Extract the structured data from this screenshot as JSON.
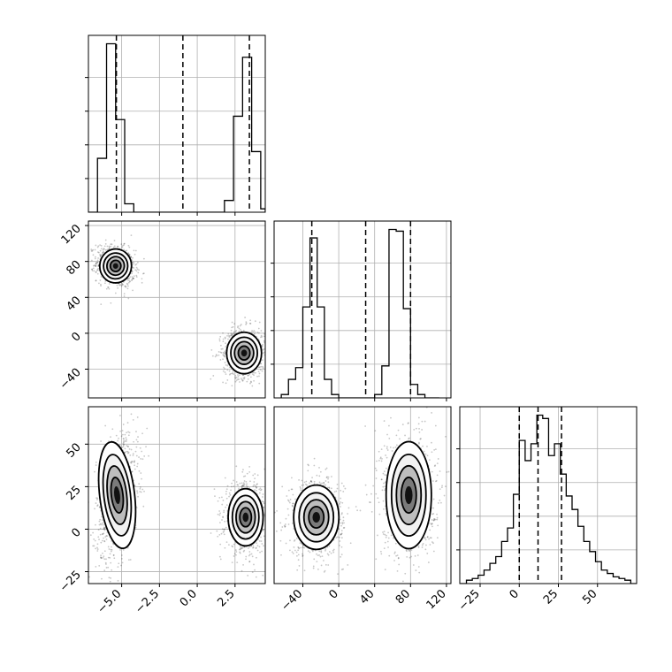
{
  "chart_data": {
    "type": "corner",
    "parameters": 3,
    "grid": true,
    "panels": [
      {
        "id": "hist-p1",
        "type": "histogram",
        "row": 0,
        "col": 0,
        "xlim": [
          -7.2,
          4.5
        ],
        "ylim": [
          0,
          1.05
        ],
        "xticks": [
          -5.0,
          -2.5,
          0.0,
          2.5
        ],
        "quantiles": [
          -5.35,
          -0.95,
          3.45
        ],
        "bins": {
          "edges": [
            -7.2,
            -6.6,
            -6.0,
            -5.4,
            -4.8,
            -4.2,
            -3.6,
            -3.0,
            1.8,
            2.4,
            3.0,
            3.6,
            4.2,
            4.5
          ],
          "heights": [
            0.0,
            0.32,
            1.0,
            0.55,
            0.05,
            0.0,
            0.0,
            0.0,
            0.07,
            0.57,
            0.92,
            0.36,
            0.02
          ]
        }
      },
      {
        "id": "scatter-p1-p2",
        "type": "density2d",
        "row": 1,
        "col": 0,
        "xlim": [
          -7.2,
          4.5
        ],
        "ylim": [
          -72,
          125
        ],
        "xticks": [
          -5.0,
          -2.5,
          0.0,
          2.5
        ],
        "yticks": [
          -40,
          0,
          40,
          80,
          120
        ],
        "ytick_labels": [
          "−40",
          "0",
          "40",
          "80",
          "120"
        ],
        "clusters": [
          {
            "cx": -5.4,
            "cy": 75,
            "sx": 0.5,
            "sy": 9,
            "rho": -0.2
          },
          {
            "cx": 3.1,
            "cy": -22,
            "sx": 0.55,
            "sy": 11,
            "rho": 0.0
          }
        ]
      },
      {
        "id": "hist-p2",
        "type": "histogram",
        "row": 1,
        "col": 1,
        "xlim": [
          -72,
          125
        ],
        "ylim": [
          0,
          1.05
        ],
        "xticks": [
          -40,
          0,
          40,
          80,
          120
        ],
        "quantiles": [
          -30,
          30,
          80
        ],
        "bins": {
          "edges": [
            -64,
            -56,
            -48,
            -40,
            -32,
            -24,
            -16,
            -8,
            0,
            8,
            40,
            48,
            56,
            64,
            72,
            80,
            88,
            96,
            104,
            112
          ],
          "heights": [
            0.02,
            0.11,
            0.18,
            0.54,
            0.95,
            0.54,
            0.11,
            0.02,
            0.0,
            0.0,
            0.02,
            0.19,
            1.0,
            0.99,
            0.53,
            0.08,
            0.02,
            0.0,
            0.0
          ]
        }
      },
      {
        "id": "scatter-p1-p3",
        "type": "density2d",
        "row": 2,
        "col": 0,
        "xlim": [
          -7.2,
          4.5
        ],
        "ylim": [
          -32,
          72
        ],
        "xticks": [
          -5.0,
          -2.5,
          0.0,
          2.5
        ],
        "xtick_labels": [
          "−5.0",
          "−2.5",
          "0.0",
          "2.5"
        ],
        "yticks": [
          -25,
          0,
          25,
          50
        ],
        "ytick_labels": [
          "−25",
          "0",
          "25",
          "50"
        ],
        "clusters": [
          {
            "cx": -5.3,
            "cy": 20,
            "sx": 0.55,
            "sy": 15,
            "rho": 0.35
          },
          {
            "cx": 3.2,
            "cy": 7,
            "sx": 0.55,
            "sy": 8,
            "rho": 0.0
          }
        ]
      },
      {
        "id": "scatter-p2-p3",
        "type": "density2d",
        "row": 2,
        "col": 1,
        "xlim": [
          -72,
          125
        ],
        "ylim": [
          -32,
          72
        ],
        "xticks": [
          -40,
          0,
          40,
          80,
          120
        ],
        "xtick_labels": [
          "−40",
          "0",
          "40",
          "80",
          "120"
        ],
        "clusters": [
          {
            "cx": -25,
            "cy": 7,
            "sx": 12,
            "sy": 9,
            "rho": 0.0
          },
          {
            "cx": 78,
            "cy": 20,
            "sx": 12,
            "sy": 15,
            "rho": 0.0
          }
        ]
      },
      {
        "id": "hist-p3",
        "type": "histogram",
        "row": 2,
        "col": 2,
        "xlim": [
          -38,
          75
        ],
        "ylim": [
          0,
          1.05
        ],
        "xticks": [
          -25,
          0,
          25,
          50
        ],
        "xtick_labels": [
          "−25",
          "0",
          "25",
          "50"
        ],
        "quantiles": [
          0,
          12,
          27
        ],
        "bins": {
          "edges": [
            -37.5,
            -33.75,
            -30,
            -26.25,
            -22.5,
            -18.75,
            -15,
            -11.25,
            -7.5,
            -3.75,
            0,
            3.75,
            7.5,
            11.25,
            15,
            18.75,
            22.5,
            26.25,
            30,
            33.75,
            37.5,
            41.25,
            45,
            48.75,
            52.5,
            56.25,
            60,
            63.75,
            67.5,
            71.25,
            75
          ],
          "heights": [
            0.0,
            0.02,
            0.03,
            0.05,
            0.08,
            0.12,
            0.16,
            0.25,
            0.33,
            0.53,
            0.85,
            0.73,
            0.83,
            1.0,
            0.98,
            0.76,
            0.83,
            0.65,
            0.52,
            0.44,
            0.34,
            0.25,
            0.19,
            0.13,
            0.08,
            0.06,
            0.04,
            0.03,
            0.02,
            0.0
          ]
        }
      }
    ]
  }
}
